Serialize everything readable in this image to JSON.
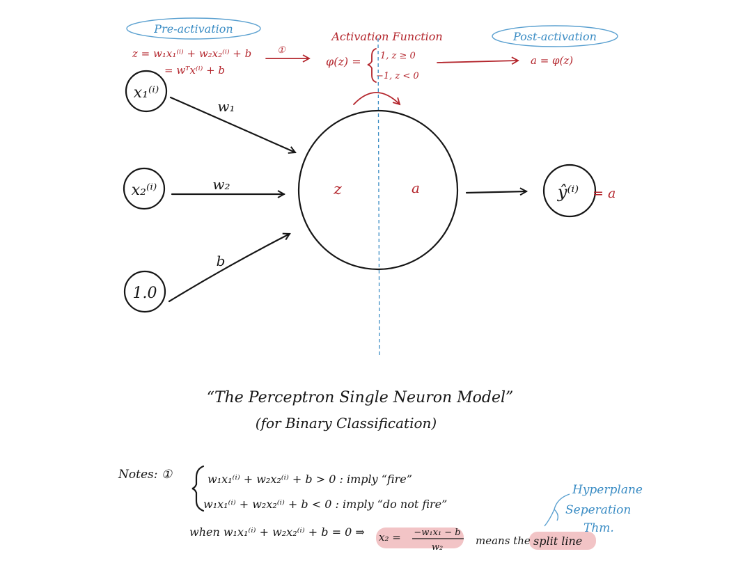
{
  "header": {
    "pre_activation_label": "Pre-activation",
    "pre_activation_formula_line1": "z = w₁x₁⁽ⁱ⁾ + w₂x₂⁽ⁱ⁾ + b",
    "pre_activation_formula_line2": "= wᵀx⁽ⁱ⁾ + b",
    "note_marker": "①",
    "activation_function_label": "Activation Function",
    "activation_function_lhs": "φ(z) =",
    "activation_case_1": "1,  z ≥ 0",
    "activation_case_2": "−1,  z < 0",
    "post_activation_label": "Post-activation",
    "post_activation_formula": "a = φ(z)"
  },
  "inputs": [
    {
      "label": "x₁⁽ⁱ⁾",
      "weight": "w₁"
    },
    {
      "label": "x₂⁽ⁱ⁾",
      "weight": "w₂"
    },
    {
      "label": "1.0",
      "weight": "b"
    }
  ],
  "neuron": {
    "left_label": "z",
    "right_label": "a"
  },
  "output": {
    "label": "ŷ⁽ⁱ⁾",
    "equals": "= a"
  },
  "caption": {
    "title": "“The Perceptron Single Neuron Model”",
    "subtitle": "(for Binary Classification)"
  },
  "notes": {
    "prefix": "Notes: ①",
    "line1": "w₁x₁⁽ⁱ⁾ + w₂x₂⁽ⁱ⁾ + b > 0 :  imply “fire”",
    "line2": "w₁x₁⁽ⁱ⁾ + w₂x₂⁽ⁱ⁾ + b < 0 :  imply “do not fire”",
    "line3_prefix": "when w₁x₁⁽ⁱ⁾ + w₂x₂⁽ⁱ⁾ + b = 0 ⇒",
    "line3_x2": "x₂ =",
    "line3_numerator": "−w₁x₁ − b",
    "line3_denominator": "w₂",
    "line3_means": "means the",
    "line3_split": "split line",
    "hyperplane_label_1": "Hyperplane",
    "hyperplane_label_2": "Seperation",
    "hyperplane_label_3": "Thm."
  },
  "colors": {
    "ink": "#161616",
    "red_ink": "#b3242b",
    "blue_ink": "#3a8cc4",
    "highlight": "#f2c4c6"
  }
}
